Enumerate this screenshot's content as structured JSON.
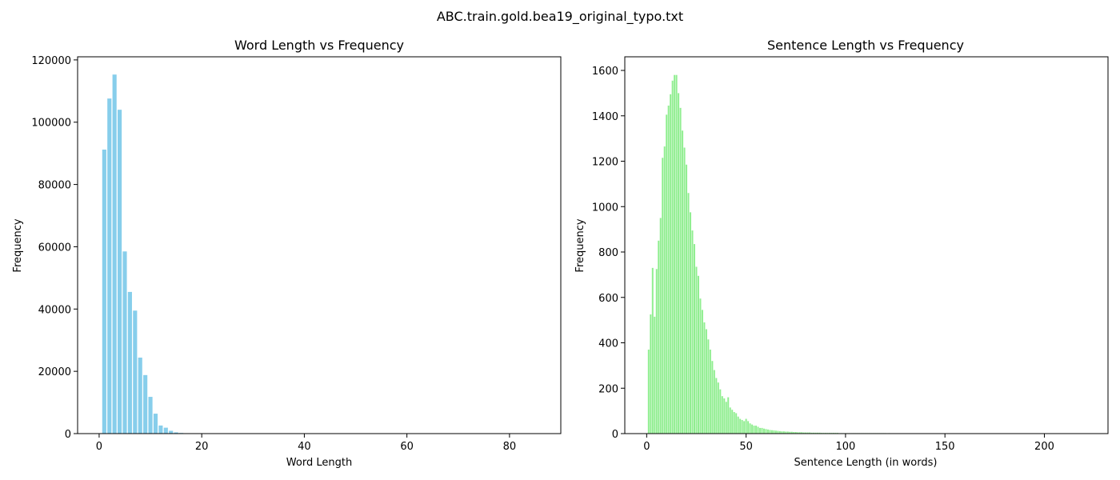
{
  "figure_title": "ABC.train.gold.bea19_original_typo.txt",
  "chart_data": [
    {
      "type": "bar",
      "title": "Word Length vs Frequency",
      "xlabel": "Word Length",
      "ylabel": "Frequency",
      "xlim": [
        -4.2,
        90
      ],
      "ylim": [
        0,
        121000
      ],
      "xticks": [
        0,
        20,
        40,
        60,
        80
      ],
      "yticks": [
        0,
        20000,
        40000,
        60000,
        80000,
        100000,
        120000
      ],
      "grid": false,
      "color": "#87ceeb",
      "x": [
        1,
        2,
        3,
        4,
        5,
        6,
        7,
        8,
        9,
        10,
        11,
        12,
        13,
        14,
        15,
        16,
        17,
        18,
        19,
        20,
        21,
        22,
        23,
        24,
        25,
        30,
        35,
        45,
        85
      ],
      "values": [
        91200,
        107600,
        115300,
        104000,
        58500,
        45500,
        39500,
        24400,
        18800,
        11800,
        6400,
        2600,
        1900,
        900,
        400,
        200,
        120,
        80,
        50,
        30,
        20,
        15,
        10,
        8,
        6,
        4,
        3,
        2,
        1
      ]
    },
    {
      "type": "bar",
      "title": "Sentence Length vs Frequency",
      "xlabel": "Sentence Length (in words)",
      "ylabel": "Frequency",
      "xlim": [
        -11,
        232
      ],
      "ylim": [
        0,
        1660
      ],
      "xticks": [
        0,
        50,
        100,
        150,
        200
      ],
      "yticks": [
        0,
        200,
        400,
        600,
        800,
        1000,
        1200,
        1400,
        1600
      ],
      "grid": false,
      "color": "#90ee90",
      "x": [
        1,
        2,
        3,
        4,
        5,
        6,
        7,
        8,
        9,
        10,
        11,
        12,
        13,
        14,
        15,
        16,
        17,
        18,
        19,
        20,
        21,
        22,
        23,
        24,
        25,
        26,
        27,
        28,
        29,
        30,
        31,
        32,
        33,
        34,
        35,
        36,
        37,
        38,
        39,
        40,
        41,
        42,
        43,
        44,
        45,
        46,
        47,
        48,
        49,
        50,
        51,
        52,
        53,
        54,
        55,
        56,
        57,
        58,
        59,
        60,
        61,
        62,
        63,
        64,
        65,
        66,
        67,
        68,
        69,
        70,
        71,
        72,
        73,
        74,
        75,
        76,
        77,
        78,
        79,
        80,
        81,
        82,
        83,
        84,
        85,
        86,
        87,
        88,
        89,
        90,
        91,
        92,
        93,
        94,
        95,
        96,
        97,
        98,
        99,
        100,
        101,
        102,
        103,
        104,
        105,
        106,
        107,
        108,
        109,
        110,
        111,
        112,
        113,
        114,
        115,
        116,
        117,
        118,
        119,
        120,
        122,
        124,
        126,
        128,
        130,
        133,
        136,
        140,
        145,
        150,
        155,
        160,
        165,
        170,
        175,
        180,
        190,
        200,
        210,
        220
      ],
      "values": [
        370,
        525,
        730,
        515,
        725,
        850,
        950,
        1215,
        1265,
        1405,
        1445,
        1495,
        1555,
        1580,
        1580,
        1500,
        1435,
        1335,
        1260,
        1185,
        1060,
        975,
        895,
        835,
        735,
        695,
        595,
        545,
        490,
        460,
        415,
        370,
        320,
        280,
        245,
        225,
        195,
        165,
        155,
        140,
        160,
        115,
        105,
        95,
        90,
        75,
        65,
        60,
        55,
        65,
        55,
        45,
        40,
        35,
        35,
        30,
        25,
        25,
        22,
        20,
        18,
        16,
        15,
        14,
        13,
        12,
        11,
        10,
        10,
        9,
        9,
        8,
        8,
        7,
        7,
        6,
        6,
        6,
        5,
        5,
        5,
        5,
        4,
        4,
        4,
        4,
        4,
        3,
        3,
        3,
        3,
        3,
        3,
        3,
        3,
        3,
        2,
        2,
        2,
        2,
        2,
        2,
        2,
        2,
        2,
        2,
        2,
        2,
        2,
        2,
        2,
        2,
        2,
        2,
        2,
        2,
        2,
        2,
        2,
        2,
        2,
        1,
        1,
        1,
        1,
        1,
        1,
        1,
        1,
        1,
        1,
        1,
        1,
        1,
        1,
        1,
        1,
        1,
        1,
        1
      ]
    }
  ]
}
